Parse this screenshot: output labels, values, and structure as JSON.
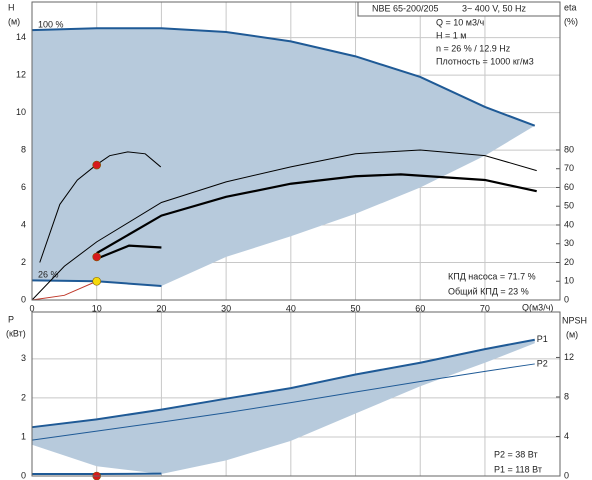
{
  "chart_data": [
    {
      "type": "line",
      "y_label": "H",
      "y_unit": "(м)",
      "y2_label": "eta",
      "y2_unit": "(%)",
      "x_label": "Q(м3/ч)",
      "xlim": [
        0,
        81.6
      ],
      "ylim": [
        0,
        15.9
      ],
      "y2lim": [
        0,
        158.9
      ],
      "xticks": [
        0,
        10,
        20,
        30,
        40,
        50,
        60,
        70
      ],
      "yticks": [
        0,
        2,
        4,
        6,
        8,
        10,
        12,
        14
      ],
      "y2ticks": [
        0,
        10,
        20,
        30,
        40,
        50,
        60,
        70,
        80
      ],
      "grid": true,
      "annotations": [
        "NBE 65-200/205",
        "3~ 400 V, 50 Hz",
        "Q = 10 м3/ч",
        "H = 1 м",
        "n = 26 % / 12.9 Hz",
        "Плотность = 1000 кг/м3",
        "КПД насоса = 71.7 %",
        "Общий КПД = 23 %"
      ],
      "series": [
        {
          "kind": "area",
          "color": "#b7cadc",
          "x": [
            0,
            10,
            20,
            30,
            40,
            50,
            60,
            70,
            77.7,
            70,
            60,
            50,
            40,
            30,
            20,
            10,
            0
          ],
          "values": [
            14.4,
            14.5,
            14.5,
            14.3,
            13.8,
            13.0,
            11.9,
            10.3,
            9.3,
            7.7,
            6.0,
            4.6,
            3.4,
            2.3,
            0.75,
            1.0,
            1.05
          ]
        },
        {
          "kind": "line",
          "name": "100 %",
          "color": "#1f5a96",
          "width": 2,
          "x": [
            0,
            10,
            20,
            30,
            40,
            50,
            60,
            70,
            77.7
          ],
          "values": [
            14.4,
            14.5,
            14.5,
            14.3,
            13.8,
            13.0,
            11.9,
            10.3,
            9.3
          ]
        },
        {
          "kind": "line",
          "name": "26 %",
          "color": "#1f5a96",
          "width": 2,
          "x": [
            0,
            10,
            20
          ],
          "values": [
            1.05,
            1.0,
            0.75
          ]
        },
        {
          "kind": "line",
          "color": "#000000",
          "width": 1,
          "x": [
            1.2,
            4.3,
            7,
            9.9,
            12,
            14.8,
            17.5,
            19.9
          ],
          "values": [
            2.0,
            5.1,
            6.4,
            7.2,
            7.7,
            7.9,
            7.8,
            7.1
          ]
        },
        {
          "kind": "line",
          "axis": "y2",
          "color": "#000000",
          "width": 1,
          "x": [
            0,
            5,
            10,
            20,
            30,
            40,
            50,
            60,
            70,
            78
          ],
          "values": [
            0,
            18,
            31,
            52,
            63,
            71,
            78,
            80,
            77,
            69
          ]
        },
        {
          "kind": "line",
          "axis": "y2",
          "color": "#000000",
          "width": 2.2,
          "x": [
            10,
            20,
            30,
            40,
            50,
            57,
            70,
            78
          ],
          "values": [
            25,
            45,
            55,
            62,
            66,
            67,
            64,
            58
          ]
        },
        {
          "kind": "line",
          "axis": "y2",
          "color": "#000000",
          "width": 2.2,
          "x": [
            10,
            15,
            20
          ],
          "values": [
            22,
            29,
            28
          ]
        },
        {
          "kind": "line",
          "color": "#c0392b",
          "width": 1,
          "x": [
            0,
            5,
            10
          ],
          "values": [
            0,
            0.25,
            1.0
          ]
        },
        {
          "kind": "point",
          "color": "#d7191c",
          "x": [
            10
          ],
          "values": [
            7.2
          ]
        },
        {
          "kind": "point",
          "color": "#d7191c",
          "x": [
            10
          ],
          "values": [
            2.3
          ]
        },
        {
          "kind": "point",
          "color": "#f5d90a",
          "x": [
            10
          ],
          "values": [
            1.0
          ]
        }
      ]
    },
    {
      "type": "line",
      "y_label": "P",
      "y_unit": "(кВт)",
      "y2_label": "NPSH",
      "y2_unit": "(м)",
      "xlim": [
        0,
        81.6
      ],
      "ylim": [
        0,
        4.2
      ],
      "y2lim": [
        0,
        16.6
      ],
      "xticks": [
        0,
        10,
        20,
        30,
        40,
        50,
        60,
        70
      ],
      "yticks": [
        0,
        1,
        2,
        3
      ],
      "y2ticks": [
        0,
        4,
        8,
        12
      ],
      "grid": true,
      "annotations": [
        "P2 = 38 Вт",
        "P1 = 118 Вт"
      ],
      "series": [
        {
          "kind": "area",
          "color": "#b7cadc",
          "x": [
            0,
            10,
            20,
            30,
            40,
            50,
            60,
            70,
            77.7,
            77.7,
            70,
            60,
            50,
            40,
            30,
            20,
            10,
            0
          ],
          "values": [
            1.25,
            1.45,
            1.7,
            1.98,
            2.25,
            2.6,
            2.9,
            3.25,
            3.49,
            3.4,
            2.9,
            2.3,
            1.6,
            0.9,
            0.4,
            0.05,
            0.25,
            0.8
          ]
        },
        {
          "kind": "line",
          "name": "P1",
          "color": "#1f5a96",
          "width": 2,
          "x": [
            0,
            10,
            20,
            30,
            40,
            50,
            60,
            70,
            77.7
          ],
          "values": [
            1.25,
            1.45,
            1.7,
            1.98,
            2.25,
            2.6,
            2.9,
            3.25,
            3.49
          ]
        },
        {
          "kind": "line",
          "name": "P2",
          "color": "#1f5a96",
          "width": 1,
          "x": [
            0,
            10,
            20,
            30,
            40,
            50,
            60,
            70,
            77.7
          ],
          "values": [
            0.92,
            1.15,
            1.38,
            1.62,
            1.88,
            2.15,
            2.42,
            2.68,
            2.87
          ]
        },
        {
          "kind": "line",
          "color": "#1f5a96",
          "width": 2,
          "x": [
            0,
            10,
            20
          ],
          "values": [
            0.05,
            0.05,
            0.06
          ]
        },
        {
          "kind": "point",
          "color": "#d7191c",
          "x": [
            10
          ],
          "values": [
            0
          ]
        }
      ]
    }
  ]
}
